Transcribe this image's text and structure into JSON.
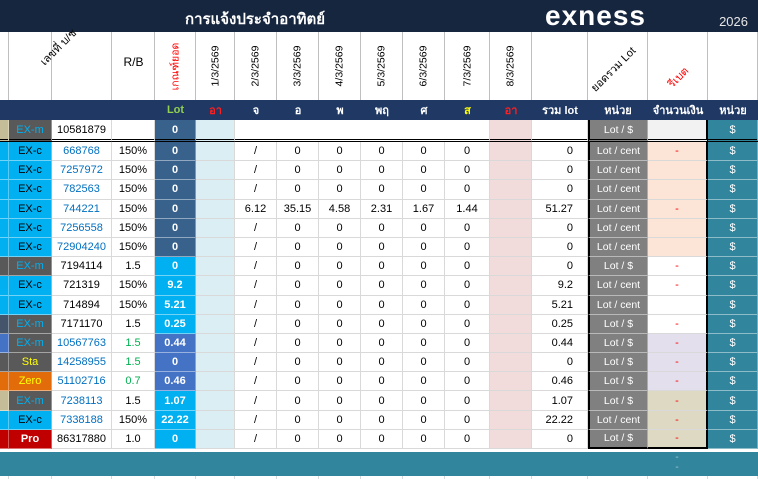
{
  "header": {
    "title": "การแจ้งประจำอาทิตย์",
    "brand": "exness",
    "year": "2026"
  },
  "column_headers": {
    "account": "เลขที่ บ/ช",
    "rb": "R/B",
    "quota": "เกณฑ์ยอด",
    "dates": [
      "1/3/2569",
      "2/3/2569",
      "3/3/2569",
      "4/3/2569",
      "5/3/2569",
      "6/3/2569",
      "7/3/2569",
      "8/3/2569"
    ],
    "total_lot": "ยอดรวม Lot",
    "rebate": "รีเบต"
  },
  "day_header": {
    "lot": "Lot",
    "days": [
      {
        "text": "อา",
        "color": "#FF1F1F"
      },
      {
        "text": "จ",
        "color": "#FFFFFF"
      },
      {
        "text": "อ",
        "color": "#FFFFFF"
      },
      {
        "text": "พ",
        "color": "#FFFFFF"
      },
      {
        "text": "พฤ",
        "color": "#FFFFFF"
      },
      {
        "text": "ศ",
        "color": "#FFFFFF"
      },
      {
        "text": "ส",
        "color": "#FFFF00"
      },
      {
        "text": "อา",
        "color": "#FF1F1F"
      }
    ],
    "sum_lot": "รวม lot",
    "unit": "หน่วย",
    "amount": "จำนวนเงิน",
    "unit2": "หน่วย",
    "currency": "$"
  },
  "colors": {
    "title_navy": "#17263F",
    "header_navy": "#1F3864",
    "steel_blue": "#38618C",
    "medium_blue": "#4472C4",
    "cyan": "#00B0F0",
    "label_gray": "#595959",
    "orange": "#E36C0A",
    "label_red": "#C00000",
    "teal": "#31859C",
    "sun_col_blue": "#DAEEF3",
    "sun_col_pink": "#F2DCDB",
    "peach": "#FCE4D6",
    "lavender": "#E4DFEC",
    "tan": "#DDD9C3",
    "light_gray": "#F2F2F2",
    "account_blue": "#0070C0",
    "green_value": "#00B050",
    "lot_green": "#92D050",
    "red_dash": "#FF0000",
    "unit_gray": "#808080"
  },
  "rows": [
    {
      "label": "EX-m",
      "label_bg": "#595959",
      "label_color": "#00B0F0",
      "bold": false,
      "strip": "#C4BD97",
      "account": "10581879",
      "account_color": "#000000",
      "rb": "",
      "rb_color": "#000000",
      "lot": "0",
      "lot_bg": "#38618C",
      "days": null,
      "total": "",
      "unit": "Lot / $",
      "unit_muted": true,
      "amount_dash": false,
      "amount_bg": "#F2F2F2"
    },
    {
      "label": "EX-c",
      "label_bg": "#00B0F0",
      "label_color": "#000000",
      "bold": false,
      "strip": "#00B0F0",
      "account": "668768",
      "account_color": "#0070C0",
      "rb": "150%",
      "rb_color": "#000000",
      "lot": "0",
      "lot_bg": "#38618C",
      "days": [
        "/",
        "0",
        "0",
        "0",
        "0",
        "0"
      ],
      "total": "0",
      "unit": "Lot / cent",
      "unit_muted": false,
      "amount_dash": true,
      "amount_bg": "#FCE4D6"
    },
    {
      "label": "EX-c",
      "label_bg": "#00B0F0",
      "label_color": "#000000",
      "bold": false,
      "strip": "#00B0F0",
      "account": "7257972",
      "account_color": "#0070C0",
      "rb": "150%",
      "rb_color": "#000000",
      "lot": "0",
      "lot_bg": "#38618C",
      "days": [
        "/",
        "0",
        "0",
        "0",
        "0",
        "0"
      ],
      "total": "0",
      "unit": "Lot / cent",
      "unit_muted": false,
      "amount_dash": false,
      "amount_bg": "#FCE4D6"
    },
    {
      "label": "EX-c",
      "label_bg": "#00B0F0",
      "label_color": "#000000",
      "bold": false,
      "strip": "#00B0F0",
      "account": "782563",
      "account_color": "#0070C0",
      "rb": "150%",
      "rb_color": "#000000",
      "lot": "0",
      "lot_bg": "#38618C",
      "days": [
        "/",
        "0",
        "0",
        "0",
        "0",
        "0"
      ],
      "total": "0",
      "unit": "Lot / cent",
      "unit_muted": false,
      "amount_dash": false,
      "amount_bg": "#FCE4D6"
    },
    {
      "label": "EX-c",
      "label_bg": "#00B0F0",
      "label_color": "#000000",
      "bold": false,
      "strip": "#00B0F0",
      "account": "744221",
      "account_color": "#0070C0",
      "rb": "150%",
      "rb_color": "#000000",
      "lot": "0",
      "lot_bg": "#38618C",
      "days": [
        "6.12",
        "35.15",
        "4.58",
        "2.31",
        "1.67",
        "1.44"
      ],
      "total": "51.27",
      "unit": "Lot / cent",
      "unit_muted": false,
      "amount_dash": true,
      "amount_bg": "#FCE4D6"
    },
    {
      "label": "EX-c",
      "label_bg": "#00B0F0",
      "label_color": "#000000",
      "bold": false,
      "strip": "#00B0F0",
      "account": "7256558",
      "account_color": "#0070C0",
      "rb": "150%",
      "rb_color": "#000000",
      "lot": "0",
      "lot_bg": "#38618C",
      "days": [
        "/",
        "0",
        "0",
        "0",
        "0",
        "0"
      ],
      "total": "0",
      "unit": "Lot / cent",
      "unit_muted": false,
      "amount_dash": false,
      "amount_bg": "#FCE4D6"
    },
    {
      "label": "EX-c",
      "label_bg": "#00B0F0",
      "label_color": "#000000",
      "bold": false,
      "strip": "#00B0F0",
      "account": "72904240",
      "account_color": "#0070C0",
      "rb": "150%",
      "rb_color": "#000000",
      "lot": "0",
      "lot_bg": "#38618C",
      "days": [
        "/",
        "0",
        "0",
        "0",
        "0",
        "0"
      ],
      "total": "0",
      "unit": "Lot / cent",
      "unit_muted": false,
      "amount_dash": false,
      "amount_bg": "#FCE4D6"
    },
    {
      "label": "EX-m",
      "label_bg": "#595959",
      "label_color": "#00B0F0",
      "bold": false,
      "strip": "#595959",
      "account": "7194114",
      "account_color": "#000000",
      "rb": "1.5",
      "rb_color": "#000000",
      "lot": "0",
      "lot_bg": "#00B0F0",
      "days": [
        "/",
        "0",
        "0",
        "0",
        "0",
        "0"
      ],
      "total": "0",
      "unit": "Lot / $",
      "unit_muted": true,
      "amount_dash": true,
      "amount_bg": "#FFFFFF"
    },
    {
      "label": "EX-c",
      "label_bg": "#00B0F0",
      "label_color": "#000000",
      "bold": false,
      "strip": "#00B0F0",
      "account": "721319",
      "account_color": "#000000",
      "rb": "150%",
      "rb_color": "#000000",
      "lot": "9.2",
      "lot_bg": "#00B0F0",
      "days": [
        "/",
        "0",
        "0",
        "0",
        "0",
        "0"
      ],
      "total": "9.2",
      "unit": "Lot / cent",
      "unit_muted": false,
      "amount_dash": true,
      "amount_bg": "#FFFFFF"
    },
    {
      "label": "EX-c",
      "label_bg": "#00B0F0",
      "label_color": "#000000",
      "bold": false,
      "strip": "#00B0F0",
      "account": "714894",
      "account_color": "#000000",
      "rb": "150%",
      "rb_color": "#000000",
      "lot": "5.21",
      "lot_bg": "#00B0F0",
      "days": [
        "/",
        "0",
        "0",
        "0",
        "0",
        "0"
      ],
      "total": "5.21",
      "unit": "Lot / cent",
      "unit_muted": false,
      "amount_dash": false,
      "amount_bg": "#FFFFFF"
    },
    {
      "label": "EX-m",
      "label_bg": "#595959",
      "label_color": "#00B0F0",
      "bold": false,
      "strip": "#44546A",
      "account": "7171170",
      "account_color": "#000000",
      "rb": "1.5",
      "rb_color": "#000000",
      "lot": "0.25",
      "lot_bg": "#00B0F0",
      "days": [
        "/",
        "0",
        "0",
        "0",
        "0",
        "0"
      ],
      "total": "0.25",
      "unit": "Lot / $",
      "unit_muted": true,
      "amount_dash": true,
      "amount_bg": "#FFFFFF"
    },
    {
      "label": "EX-m",
      "label_bg": "#595959",
      "label_color": "#00B0F0",
      "bold": false,
      "strip": "#4472C4",
      "account": "10567763",
      "account_color": "#0070C0",
      "rb": "1.5",
      "rb_color": "#00B050",
      "lot": "0.44",
      "lot_bg": "#4472C4",
      "days": [
        "/",
        "0",
        "0",
        "0",
        "0",
        "0"
      ],
      "total": "0.44",
      "unit": "Lot / $",
      "unit_muted": true,
      "amount_dash": true,
      "amount_bg": "#E4DFEC"
    },
    {
      "label": "Sta",
      "label_bg": "#595959",
      "label_color": "#FFFF00",
      "bold": false,
      "strip": "#595959",
      "account": "14258955",
      "account_color": "#0070C0",
      "rb": "1.5",
      "rb_color": "#00B050",
      "lot": "0",
      "lot_bg": "#4472C4",
      "days": [
        "/",
        "0",
        "0",
        "0",
        "0",
        "0"
      ],
      "total": "0",
      "unit": "Lot / $",
      "unit_muted": true,
      "amount_dash": true,
      "amount_bg": "#E4DFEC"
    },
    {
      "label": "Zero",
      "label_bg": "#E36C0A",
      "label_color": "#FFFF00",
      "bold": false,
      "strip": "#E36C0A",
      "account": "51102716",
      "account_color": "#0070C0",
      "rb": "0.7",
      "rb_color": "#00B050",
      "lot": "0.46",
      "lot_bg": "#4472C4",
      "days": [
        "/",
        "0",
        "0",
        "0",
        "0",
        "0"
      ],
      "total": "0.46",
      "unit": "Lot / $",
      "unit_muted": true,
      "amount_dash": true,
      "amount_bg": "#E4DFEC"
    },
    {
      "label": "EX-m",
      "label_bg": "#595959",
      "label_color": "#00B0F0",
      "bold": false,
      "strip": "#C4BD97",
      "account": "7238113",
      "account_color": "#0070C0",
      "rb": "1.5",
      "rb_color": "#000000",
      "lot": "1.07",
      "lot_bg": "#00B0F0",
      "days": [
        "/",
        "0",
        "0",
        "0",
        "0",
        "0"
      ],
      "total": "1.07",
      "unit": "Lot / $",
      "unit_muted": true,
      "amount_dash": true,
      "amount_bg": "#DDD9C3"
    },
    {
      "label": "EX-c",
      "label_bg": "#00B0F0",
      "label_color": "#000000",
      "bold": false,
      "strip": "#00B0F0",
      "account": "7338188",
      "account_color": "#0070C0",
      "rb": "150%",
      "rb_color": "#000000",
      "lot": "22.22",
      "lot_bg": "#00B0F0",
      "days": [
        "/",
        "0",
        "0",
        "0",
        "0",
        "0"
      ],
      "total": "22.22",
      "unit": "Lot / cent",
      "unit_muted": false,
      "amount_dash": true,
      "amount_bg": "#DDD9C3"
    },
    {
      "label": "Pro",
      "label_bg": "#C00000",
      "label_color": "#FFFFFF",
      "bold": true,
      "strip": "#C00000",
      "account": "86317880",
      "account_color": "#000000",
      "rb": "1.0",
      "rb_color": "#000000",
      "lot": "0",
      "lot_bg": "#00B0F0",
      "days": [
        "/",
        "0",
        "0",
        "0",
        "0",
        "0"
      ],
      "total": "0",
      "unit": "Lot / $",
      "unit_muted": true,
      "amount_dash": true,
      "amount_bg": "#DDD9C3"
    }
  ],
  "footer": {
    "dash1": "-",
    "dash2": "-"
  }
}
